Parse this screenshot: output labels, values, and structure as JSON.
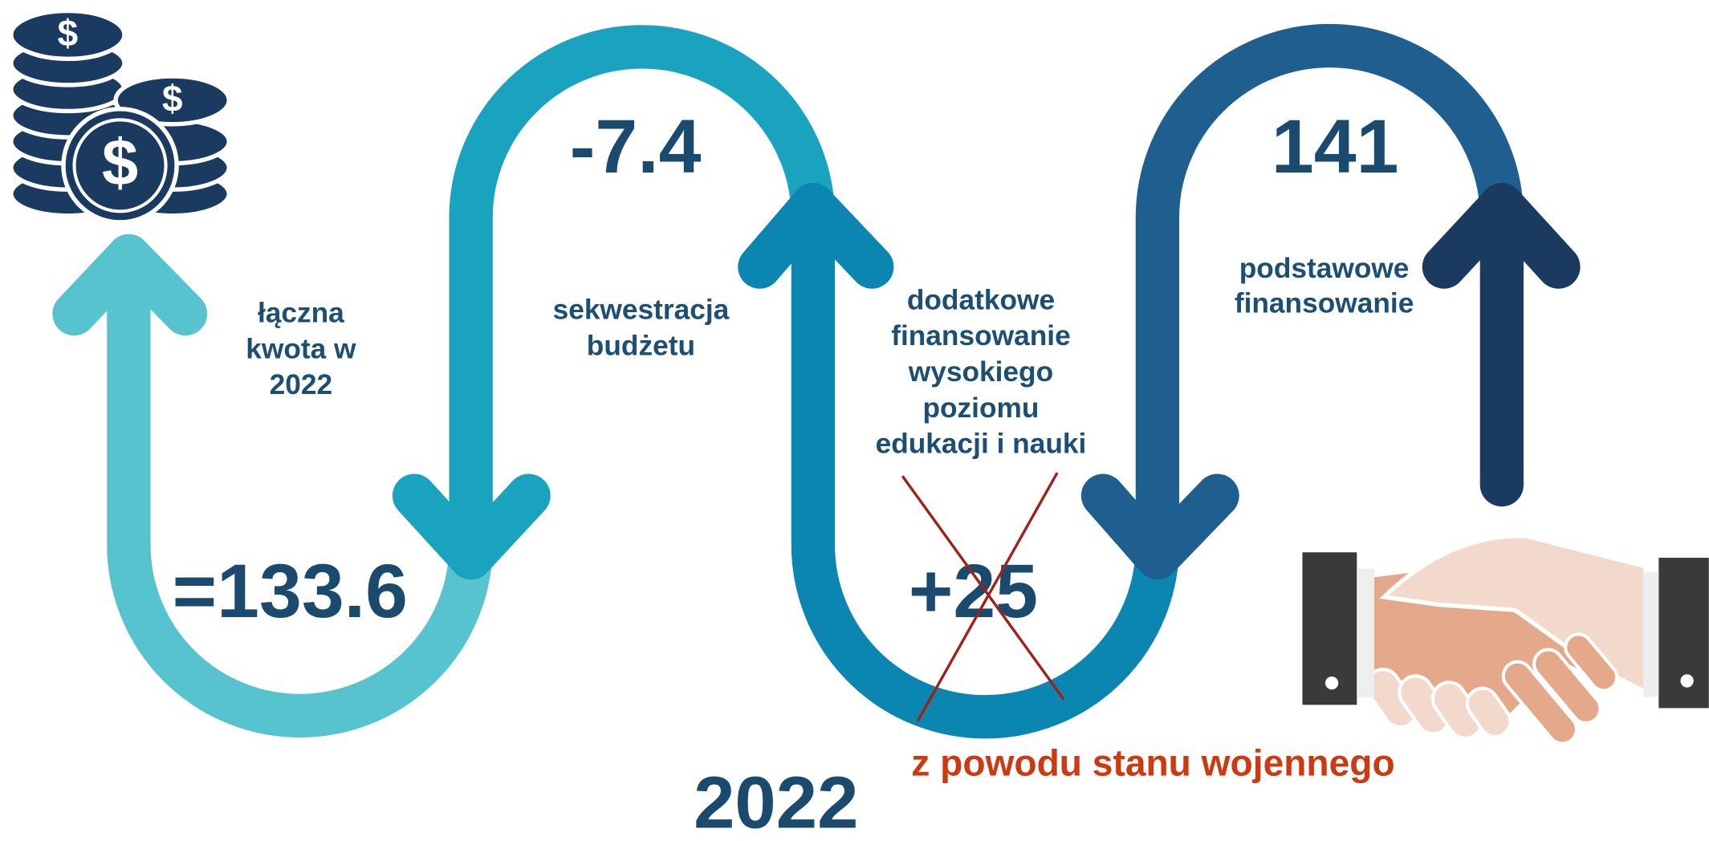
{
  "steps": [
    {
      "value": "=133.6",
      "label": [
        "łączna",
        "kwota w",
        "2022"
      ]
    },
    {
      "value": "-7.4",
      "label": [
        "sekwestracja",
        "budżetu"
      ]
    },
    {
      "value": "+25",
      "label": [
        "dodatkowe",
        "finansowanie",
        "wysokiego",
        "poziomu",
        "edukacji i nauki"
      ]
    },
    {
      "value": "141",
      "label": [
        "podstawowe",
        "finansowanie"
      ]
    }
  ],
  "note": "z powodu stanu wojennego",
  "year": "2022"
}
